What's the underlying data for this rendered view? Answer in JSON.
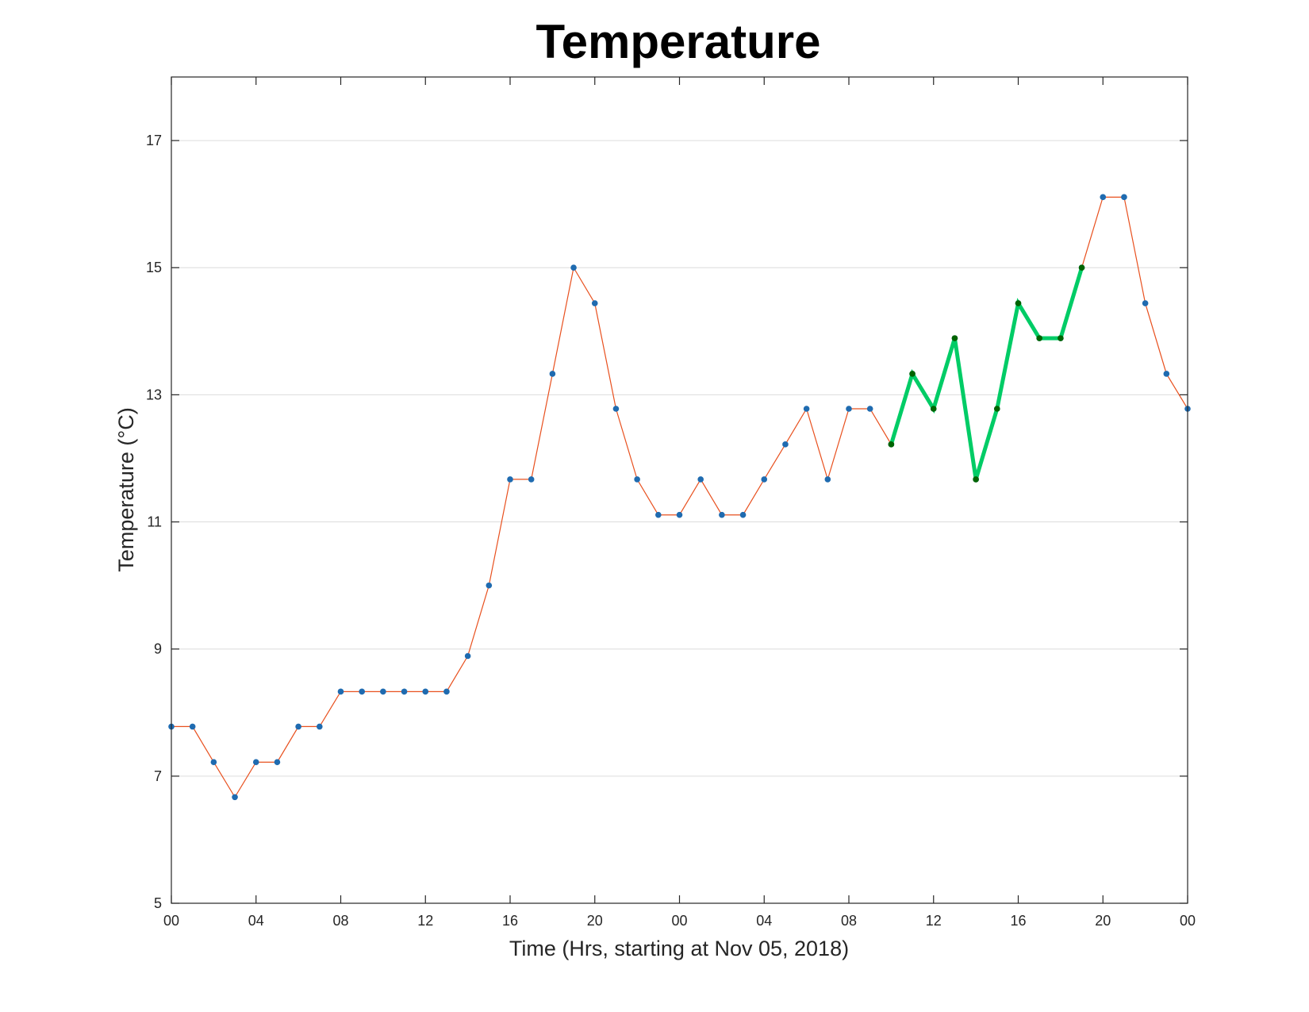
{
  "chart_data": {
    "type": "line",
    "title": "Temperature",
    "xlabel": "Time (Hrs, starting at Nov 05, 2018)",
    "ylabel": "Temperature (°C)",
    "xlim": [
      0,
      48
    ],
    "ylim": [
      5,
      18
    ],
    "grid": "horizontal",
    "x_ticks": [
      {
        "value": 0,
        "label": "00"
      },
      {
        "value": 4,
        "label": "04"
      },
      {
        "value": 8,
        "label": "08"
      },
      {
        "value": 12,
        "label": "12"
      },
      {
        "value": 16,
        "label": "16"
      },
      {
        "value": 20,
        "label": "20"
      },
      {
        "value": 24,
        "label": "00"
      },
      {
        "value": 28,
        "label": "04"
      },
      {
        "value": 32,
        "label": "08"
      },
      {
        "value": 36,
        "label": "12"
      },
      {
        "value": 40,
        "label": "16"
      },
      {
        "value": 44,
        "label": "20"
      },
      {
        "value": 48,
        "label": "00"
      }
    ],
    "y_ticks": [
      {
        "value": 5,
        "label": "5"
      },
      {
        "value": 7,
        "label": "7"
      },
      {
        "value": 9,
        "label": "9"
      },
      {
        "value": 11,
        "label": "11"
      },
      {
        "value": 13,
        "label": "13"
      },
      {
        "value": 15,
        "label": "15"
      },
      {
        "value": 17,
        "label": "17"
      }
    ],
    "series": [
      {
        "color": "#e8501e",
        "marker_color": "#1f6bb0",
        "style": "thin line with dot markers",
        "x": [
          0,
          1,
          2,
          3,
          4,
          5,
          6,
          7,
          8,
          9,
          10,
          11,
          12,
          13,
          14,
          15,
          16,
          17,
          18,
          19,
          20,
          21,
          22,
          23,
          24,
          25,
          26,
          27,
          28,
          29,
          30,
          31,
          32,
          33,
          34,
          35,
          36,
          37,
          38,
          39,
          40,
          41,
          42,
          43,
          44,
          45,
          46,
          47,
          48
        ],
        "y": [
          7.78,
          7.78,
          7.22,
          6.67,
          7.22,
          7.22,
          7.78,
          7.78,
          8.33,
          8.33,
          8.33,
          8.33,
          8.33,
          8.33,
          8.89,
          10.0,
          11.67,
          11.67,
          13.33,
          15.0,
          14.44,
          12.78,
          11.67,
          11.11,
          11.11,
          11.67,
          11.11,
          11.11,
          11.67,
          12.22,
          12.78,
          11.67,
          12.78,
          12.78,
          12.22,
          13.33,
          12.78,
          13.89,
          11.67,
          12.78,
          14.44,
          13.89,
          13.89,
          15.0,
          16.11,
          16.11,
          14.44,
          13.33,
          12.78
        ]
      },
      {
        "color": "#00cc66",
        "marker_color": "#006400",
        "style": "thick highlighted segment with dot markers",
        "x": [
          34,
          35,
          36,
          37,
          38,
          39,
          40,
          41,
          42,
          43
        ],
        "y": [
          12.22,
          13.33,
          12.78,
          13.89,
          11.67,
          12.78,
          14.44,
          13.89,
          13.89,
          15.0
        ]
      }
    ]
  }
}
